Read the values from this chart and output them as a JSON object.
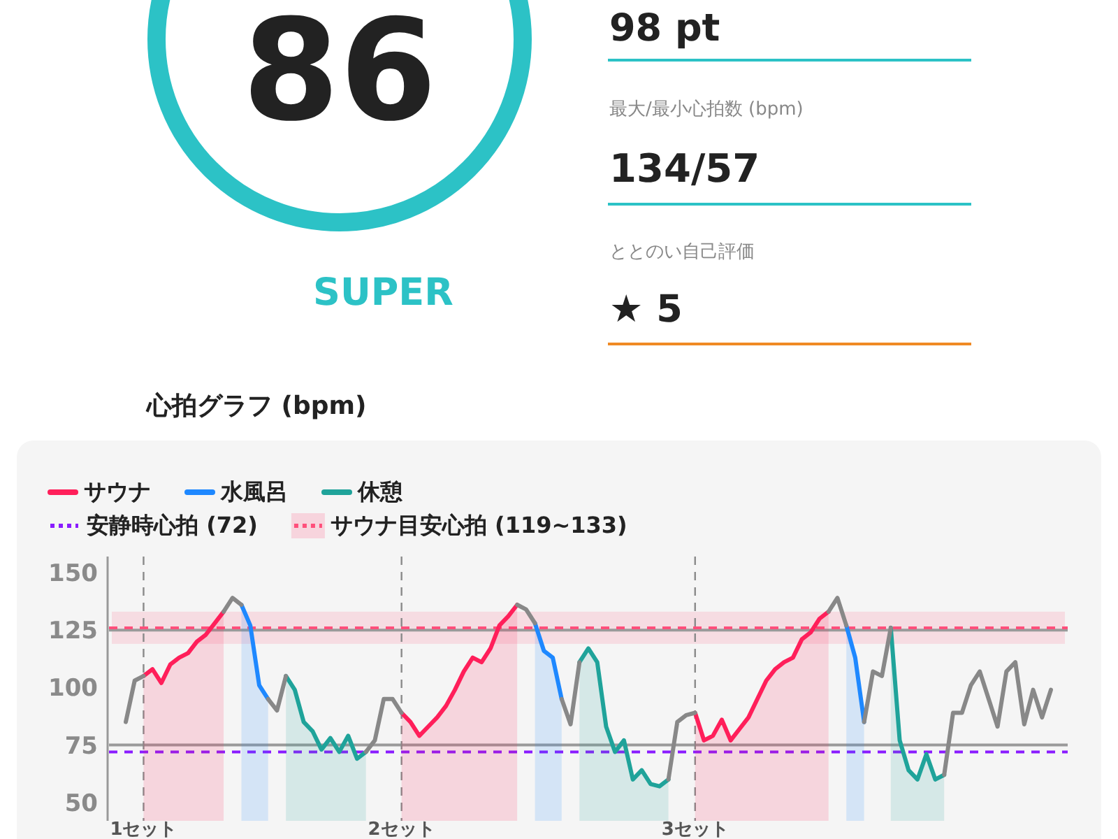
{
  "chart_data": [
    {
      "type": "other",
      "annotations": [
        "86",
        "SUPER",
        "98 pt",
        "最大/最小心拍数 (bpm)",
        "134/57",
        "ととのい自己評価",
        "★ 5"
      ]
    },
    {
      "type": "line",
      "title": "心拍グラフ (bpm)",
      "categories": [
        null,
        null,
        "1セット",
        null,
        null,
        null,
        null,
        null,
        null,
        null,
        null,
        null,
        null,
        null,
        null,
        null,
        null,
        null,
        null,
        null,
        null,
        null,
        null,
        null,
        null,
        null,
        null,
        null,
        null,
        null,
        null,
        "2セット",
        null,
        null,
        null,
        null,
        null,
        null,
        null,
        null,
        null,
        null,
        null,
        null,
        null,
        null,
        null,
        null,
        null,
        null,
        null,
        null,
        null,
        null,
        null,
        null,
        null,
        null,
        null,
        null,
        null,
        null,
        null,
        null,
        "3セット",
        null,
        null,
        null,
        null,
        null,
        null,
        null,
        null,
        null,
        null,
        null,
        null,
        null,
        null,
        null,
        null,
        null,
        null,
        null,
        null,
        null,
        null,
        null,
        null,
        null,
        null,
        null,
        null,
        null,
        null,
        null,
        null,
        null,
        null,
        null,
        null,
        null,
        null,
        null,
        null
      ],
      "ylim": [
        42,
        157
      ],
      "yticks": [
        50,
        75,
        100,
        125,
        150
      ],
      "legend": "top left",
      "series": [
        {
          "name": "サウナ",
          "type": "area",
          "color": "#ff1f5a",
          "values": [
            null,
            null,
            105,
            108,
            102,
            110,
            113,
            115,
            120,
            123,
            128,
            133,
            null,
            null,
            null,
            null,
            null,
            null,
            null,
            null,
            null,
            null,
            null,
            null,
            null,
            null,
            null,
            null,
            null,
            null,
            null,
            89,
            85,
            79,
            83,
            87,
            92,
            99,
            107,
            113,
            111,
            117,
            127,
            131,
            136,
            null,
            null,
            null,
            null,
            null,
            null,
            null,
            null,
            null,
            null,
            null,
            null,
            null,
            null,
            null,
            null,
            null,
            null,
            null,
            89,
            77,
            79,
            86,
            77,
            82,
            87,
            95,
            103,
            108,
            111,
            113,
            121,
            124,
            130,
            133,
            null,
            null,
            null,
            null,
            null,
            null,
            null,
            null,
            null,
            null,
            null,
            null,
            null,
            null,
            null,
            null,
            null,
            null,
            null,
            null,
            null,
            null,
            null,
            null,
            null
          ]
        },
        {
          "name": "水風呂",
          "type": "area",
          "color": "#1e88ff",
          "values": [
            null,
            null,
            null,
            null,
            null,
            null,
            null,
            null,
            null,
            null,
            null,
            null,
            null,
            136,
            127,
            101,
            95,
            null,
            null,
            null,
            null,
            null,
            null,
            null,
            null,
            null,
            null,
            null,
            null,
            null,
            null,
            null,
            null,
            null,
            null,
            null,
            null,
            null,
            null,
            null,
            null,
            null,
            null,
            null,
            null,
            null,
            128,
            116,
            113,
            95,
            null,
            null,
            null,
            null,
            null,
            null,
            null,
            null,
            null,
            null,
            null,
            null,
            null,
            null,
            null,
            null,
            null,
            null,
            null,
            null,
            null,
            null,
            null,
            null,
            null,
            null,
            null,
            null,
            null,
            null,
            null,
            127,
            113,
            85,
            null,
            null,
            null,
            null,
            null,
            null,
            null,
            null,
            null,
            null,
            null,
            null,
            null,
            null,
            null,
            null,
            null,
            null,
            null,
            null,
            null
          ]
        },
        {
          "name": "休憩",
          "type": "area",
          "color": "#1fa39a",
          "values": [
            null,
            null,
            null,
            null,
            null,
            null,
            null,
            null,
            null,
            null,
            null,
            null,
            null,
            null,
            null,
            null,
            null,
            null,
            105,
            99,
            85,
            81,
            73,
            78,
            72,
            79,
            69,
            72,
            null,
            null,
            null,
            null,
            null,
            null,
            null,
            null,
            null,
            null,
            null,
            null,
            null,
            null,
            null,
            null,
            null,
            null,
            null,
            null,
            null,
            null,
            null,
            111,
            117,
            111,
            83,
            72,
            77,
            60,
            64,
            58,
            57,
            60,
            null,
            null,
            null,
            null,
            null,
            null,
            null,
            null,
            null,
            null,
            null,
            null,
            null,
            null,
            null,
            null,
            null,
            null,
            null,
            null,
            null,
            null,
            null,
            null,
            126,
            77,
            64,
            60,
            71,
            60,
            62,
            null,
            null,
            null,
            null,
            null,
            null,
            null,
            null,
            null,
            null,
            null,
            null
          ]
        },
        {
          "type": "line",
          "color": "#888888",
          "values": [
            85,
            103,
            105,
            null,
            null,
            null,
            null,
            null,
            null,
            null,
            null,
            133,
            139,
            136,
            null,
            null,
            95,
            90,
            105,
            null,
            null,
            null,
            null,
            null,
            null,
            null,
            null,
            72,
            77,
            95,
            95,
            89,
            null,
            null,
            null,
            null,
            null,
            null,
            null,
            null,
            null,
            null,
            null,
            null,
            136,
            134,
            128,
            null,
            null,
            95,
            84,
            111,
            null,
            null,
            null,
            null,
            null,
            null,
            null,
            null,
            null,
            60,
            85,
            88,
            89,
            null,
            null,
            null,
            null,
            null,
            null,
            null,
            null,
            null,
            null,
            null,
            null,
            null,
            null,
            133,
            139,
            127,
            null,
            85,
            107,
            105,
            126,
            null,
            null,
            null,
            null,
            null,
            62,
            89,
            89,
            101,
            107,
            95,
            83,
            107,
            111,
            84,
            99,
            87,
            99
          ]
        }
      ],
      "ref_lines": [
        {
          "axis": "y",
          "value": 75,
          "color": "#9a9a9a",
          "line_style": "solid"
        },
        {
          "axis": "y",
          "value": 125,
          "color": "#9a9a9a",
          "line_style": "solid"
        },
        {
          "axis": "y",
          "value": 126,
          "color": "#ff4f7b",
          "line_style": "dashed"
        },
        {
          "axis": "y",
          "value": 72,
          "color": "#8a1cff",
          "line_style": "dashed",
          "label": "安静時心拍 (72)"
        },
        {
          "axis": "x",
          "value": "1セット",
          "color": "#8a8a8a",
          "line_style": "dashed"
        },
        {
          "axis": "x",
          "value": "2セット",
          "color": "#8a8a8a",
          "line_style": "dashed"
        },
        {
          "axis": "x",
          "value": "3セット",
          "color": "#8a8a8a",
          "line_style": "dashed"
        }
      ],
      "bands": [
        {
          "axis": "y",
          "from": 119,
          "to": 133,
          "color": "#ff4f7b",
          "label": "サウナ目安心拍 (119~133)"
        }
      ]
    }
  ]
}
